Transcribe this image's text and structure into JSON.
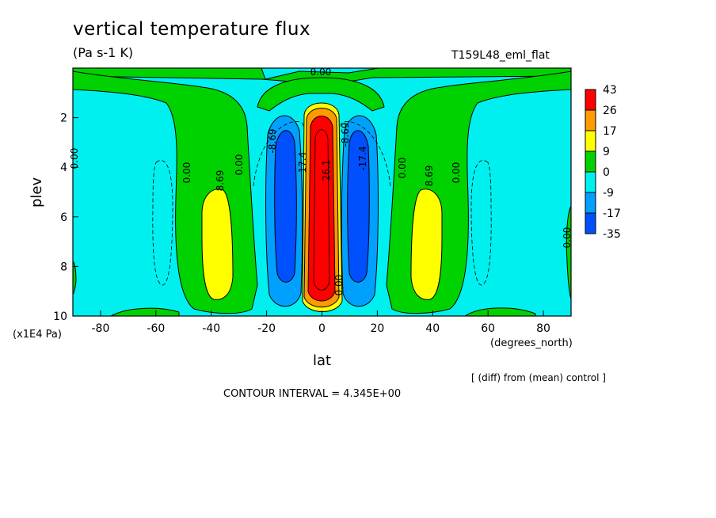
{
  "header": {
    "title": "vertical temperature flux",
    "units": "(Pa s-1 K)",
    "run_label": "T159L48_eml_flat"
  },
  "footer": {
    "note": "[ (diff) from (mean) control ]",
    "contour_interval": "CONTOUR INTERVAL = 4.345E+00"
  },
  "chart_data": {
    "type": "heatmap",
    "title": "vertical temperature flux",
    "subtitle": "(Pa s-1 K)",
    "xlabel": "lat",
    "xunit": "(degrees_north)",
    "ylabel": "plev",
    "yunit": "(x1E4 Pa)",
    "xlim": [
      -90,
      90
    ],
    "ylim": [
      0,
      10
    ],
    "y_inverted": true,
    "grid": false,
    "legend_position": "right",
    "x_ticks": [
      -80,
      -60,
      -40,
      -20,
      0,
      20,
      40,
      60,
      80
    ],
    "x_tick_labels": [
      "-80",
      "-60",
      "-40",
      "-20",
      "0",
      "20",
      "40",
      "60",
      "80"
    ],
    "y_ticks": [
      2,
      4,
      6,
      8,
      10
    ],
    "y_tick_labels": [
      "2",
      "4",
      "6",
      "8",
      "10"
    ],
    "colorbar": {
      "labels": [
        "43",
        "26",
        "17",
        "9",
        "0",
        "-9",
        "-17",
        "-35"
      ],
      "colors": [
        "#ff0000",
        "#ff9a00",
        "#ffff00",
        "#00d200",
        "#00f0f0",
        "#00a0ff",
        "#0050ff"
      ]
    },
    "contour_labels": [
      "0.00",
      "8.69",
      "-8.69",
      "17.4",
      "-17.4",
      "26.1"
    ],
    "features": [
      {
        "lat": 0,
        "plev_range": [
          2,
          9.5
        ],
        "value": 43,
        "kind": "maximum"
      },
      {
        "lat": -14,
        "plev_range": [
          3,
          9
        ],
        "value": -26,
        "kind": "minimum"
      },
      {
        "lat": 14,
        "plev_range": [
          3,
          9
        ],
        "value": -26,
        "kind": "minimum"
      },
      {
        "lat": -38,
        "plev_range": [
          5,
          9
        ],
        "value": 13,
        "kind": "maximum"
      },
      {
        "lat": 38,
        "plev_range": [
          5,
          9
        ],
        "value": 13,
        "kind": "maximum"
      }
    ],
    "contour_interval": 4.345
  }
}
